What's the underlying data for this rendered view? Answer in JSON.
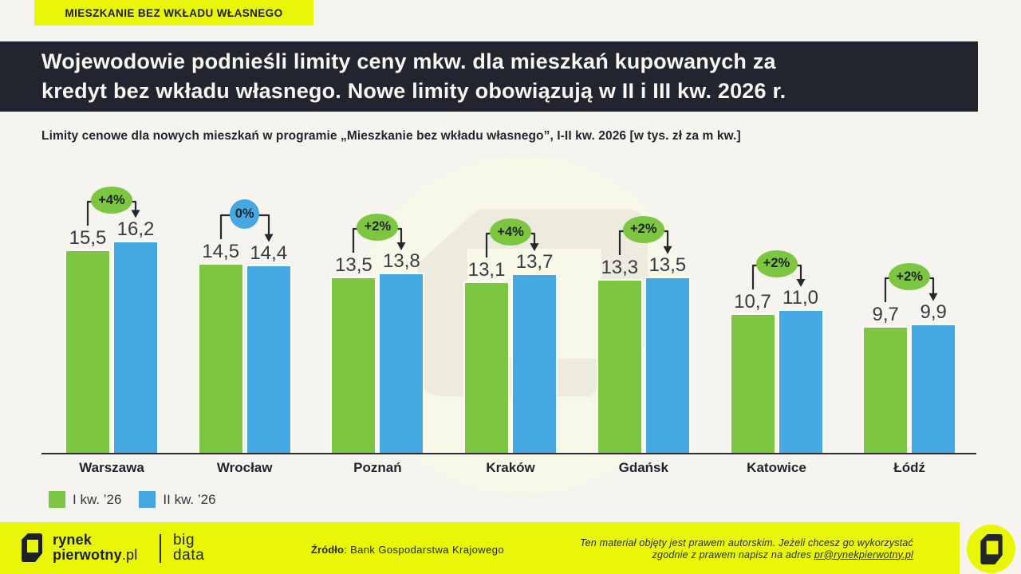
{
  "badge": {
    "label": "MIESZKANIE BEZ WKŁADU WŁASNEGO"
  },
  "header": {
    "title_line1": "Wojewodowie podnieśli limity ceny mkw. dla mieszkań kupowanych za",
    "title_line2": "kredyt bez wkładu własnego. Nowe limity obowiązują w II i III kw. 2026 r."
  },
  "chart_data": {
    "type": "bar",
    "title": "Limity cenowe dla nowych mieszkań w programie „Mieszkanie bez wkładu własnego”, I-II kw. 2026 [w tys. zł za m kw.]",
    "categories": [
      "Warszawa",
      "Wrocław",
      "Poznań",
      "Kraków",
      "Gdańsk",
      "Katowice",
      "Łódź"
    ],
    "series": [
      {
        "name": "I kw. ’26",
        "color": "#7cc642",
        "values": [
          15.5,
          14.5,
          13.5,
          13.1,
          13.3,
          10.7,
          9.7
        ]
      },
      {
        "name": "II kw. ’26",
        "color": "#45a8e3",
        "values": [
          16.2,
          14.4,
          13.8,
          13.7,
          13.5,
          11.0,
          9.9
        ]
      }
    ],
    "value_labels": [
      [
        "15,5",
        "16,2"
      ],
      [
        "14,5",
        "14,4"
      ],
      [
        "13,5",
        "13,8"
      ],
      [
        "13,1",
        "13,7"
      ],
      [
        "13,3",
        "13,5"
      ],
      [
        "10,7",
        "11,0"
      ],
      [
        "9,7",
        "9,9"
      ]
    ],
    "change_badges": [
      {
        "label": "+4%",
        "variant": "green"
      },
      {
        "label": "0%",
        "variant": "blue"
      },
      {
        "label": "+2%",
        "variant": "green"
      },
      {
        "label": "+4%",
        "variant": "green"
      },
      {
        "label": "+2%",
        "variant": "green"
      },
      {
        "label": "+2%",
        "variant": "green"
      },
      {
        "label": "+2%",
        "variant": "green"
      }
    ],
    "badge_colors": {
      "green": "#7cc642",
      "blue": "#45a8e3"
    },
    "ylim": [
      0,
      17
    ],
    "grid": false,
    "legend_position": "bottom-left",
    "unit": "tys. zł za m kw."
  },
  "footer": {
    "brand_line1": "rynek",
    "brand_line2_bold": "pierwotny",
    "brand_line2_suffix": ".pl",
    "product_line1": "big",
    "product_line2": "data",
    "source_label": "Źródło",
    "source_value": ": Bank Gospodarstwa Krajowego",
    "copyright_line1": "Ten materiał objęty jest prawem autorskim. Jeżeli chcesz go wykorzystać",
    "copyright_line2_prefix": "zgodnie z prawem napisz na adres ",
    "copyright_email": "pr@rynekpierwotny.pl"
  },
  "colors": {
    "background": "#f5f4ee",
    "header_bg": "#222430",
    "accent_yellow": "#e9f707",
    "series_green": "#7cc642",
    "series_blue": "#45a8e3",
    "text_dark": "#23262c"
  }
}
